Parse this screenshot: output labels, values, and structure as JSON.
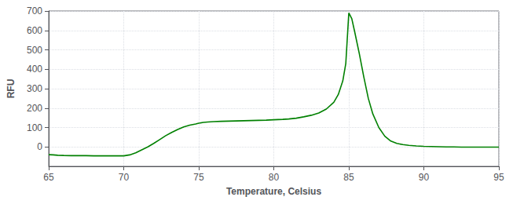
{
  "chart_data": {
    "type": "line",
    "xlabel": "Temperature, Celsius",
    "ylabel": "RFU",
    "x": [
      65.0,
      65.3,
      65.6,
      66.0,
      66.5,
      67.0,
      67.5,
      68.0,
      68.5,
      69.0,
      69.5,
      70.0,
      70.4,
      70.8,
      71.2,
      71.6,
      72.0,
      72.4,
      72.8,
      73.2,
      73.6,
      74.0,
      74.4,
      74.8,
      75.0,
      75.3,
      75.6,
      76.0,
      76.5,
      77.0,
      77.5,
      78.0,
      78.5,
      79.0,
      79.5,
      80.0,
      80.3,
      80.6,
      81.0,
      81.5,
      82.0,
      82.5,
      83.0,
      83.5,
      84.0,
      84.3,
      84.6,
      84.8,
      85.0,
      85.2,
      85.4,
      85.7,
      86.0,
      86.3,
      86.6,
      87.0,
      87.4,
      87.8,
      88.2,
      88.6,
      89.0,
      89.5,
      90.0,
      90.5,
      91.0,
      91.5,
      92.0,
      92.5,
      93.0,
      93.5,
      94.0,
      94.5,
      95.0
    ],
    "values": [
      -40,
      -41,
      -43,
      -44,
      -45,
      -45,
      -45,
      -46,
      -46,
      -46,
      -46,
      -46,
      -41,
      -30,
      -15,
      0,
      18,
      38,
      58,
      75,
      90,
      103,
      112,
      118,
      122,
      126,
      128,
      130,
      132,
      133,
      134,
      135,
      136,
      137,
      138,
      140,
      141,
      142,
      144,
      148,
      155,
      163,
      175,
      195,
      230,
      270,
      340,
      430,
      690,
      660,
      590,
      480,
      360,
      250,
      170,
      100,
      55,
      30,
      18,
      12,
      8,
      5,
      3,
      2,
      1,
      0,
      0,
      -1,
      -1,
      -1,
      -1,
      -1,
      -1
    ],
    "color": "#008000",
    "xlim": [
      65,
      95
    ],
    "ylim": [
      -100,
      700
    ],
    "xticks": [
      65,
      70,
      75,
      80,
      85,
      90,
      95
    ],
    "yticks": [
      0,
      100,
      200,
      300,
      400,
      500,
      600,
      700
    ],
    "grid": true
  }
}
